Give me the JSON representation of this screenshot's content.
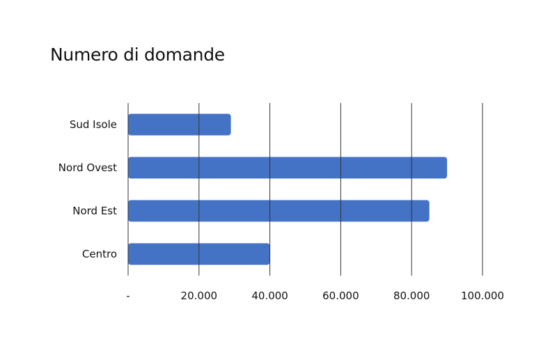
{
  "chart_data": {
    "type": "bar",
    "orientation": "horizontal",
    "title": "Numero di domande",
    "categories": [
      "Sud Isole",
      "Nord Ovest",
      "Nord Est",
      "Centro"
    ],
    "series": [
      {
        "values": [
          29000,
          90000,
          85000,
          40000
        ]
      }
    ],
    "xlim": [
      0,
      100000
    ],
    "x_ticks": [
      0,
      20000,
      40000,
      60000,
      80000,
      100000
    ],
    "x_tick_labels": [
      "-",
      "20.000",
      "40.000",
      "60.000",
      "80.000",
      "100.000"
    ],
    "grid": true,
    "bar_color": "#4472C4",
    "grid_color": "#333333"
  }
}
